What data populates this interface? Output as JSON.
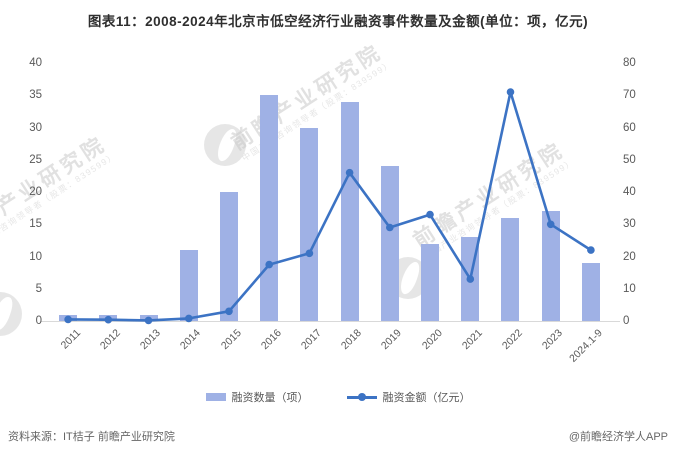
{
  "title": "图表11：2008-2024年北京市低空经济行业融资事件数量及金额(单位：项，亿元)",
  "chart_data": {
    "type": "bar",
    "subtype": "bar+line dual y-axis combo",
    "categories": [
      "2011",
      "2012",
      "2013",
      "2014",
      "2015",
      "2016",
      "2017",
      "2018",
      "2019",
      "2020",
      "2021",
      "2022",
      "2023",
      "2024.1-9"
    ],
    "series": [
      {
        "name": "融资数量（项）",
        "type": "bar",
        "axis": "left",
        "color": "#9fb1e5",
        "values": [
          1,
          1,
          1,
          11,
          20,
          35,
          30,
          34,
          24,
          12,
          13,
          16,
          17,
          9
        ]
      },
      {
        "name": "融资金额（亿元）",
        "type": "line",
        "axis": "right",
        "color": "#3c73c4",
        "values": [
          0.5,
          0.4,
          0.2,
          0.8,
          3,
          17.5,
          21,
          46,
          29,
          33,
          13,
          71,
          30,
          22
        ]
      }
    ],
    "left_axis": {
      "min": 0,
      "max": 40,
      "step": 5,
      "ticks": [
        0,
        5,
        10,
        15,
        20,
        25,
        30,
        35,
        40
      ]
    },
    "right_axis": {
      "min": 0,
      "max": 80,
      "step": 10,
      "ticks": [
        0,
        10,
        20,
        30,
        40,
        50,
        60,
        70,
        80
      ]
    },
    "grid": false,
    "legend_position": "bottom",
    "x_tick_rotation": -45
  },
  "legend": {
    "items": [
      {
        "label": "融资数量（项）",
        "swatch": "bar-swatch",
        "color": "#9fb1e5"
      },
      {
        "label": "融资金额（亿元）",
        "swatch": "line-dot-swatch",
        "color": "#3c73c4"
      }
    ]
  },
  "watermark": {
    "big_text": "前瞻产业研究院",
    "small_text": "中国产业咨询领导者（股票：839599）",
    "logo": "qianzhan-circle-logo"
  },
  "footer": {
    "source": "资料来源：IT桔子 前瞻产业研究院",
    "brand": "@前瞻经济学人APP"
  },
  "colors": {
    "bar": "#9fb1e5",
    "line": "#3c73c4",
    "axis_text": "#595959",
    "title_text": "#2f2f2f",
    "axis_line": "#d9d9d9",
    "watermark": "#c9c9c9"
  }
}
